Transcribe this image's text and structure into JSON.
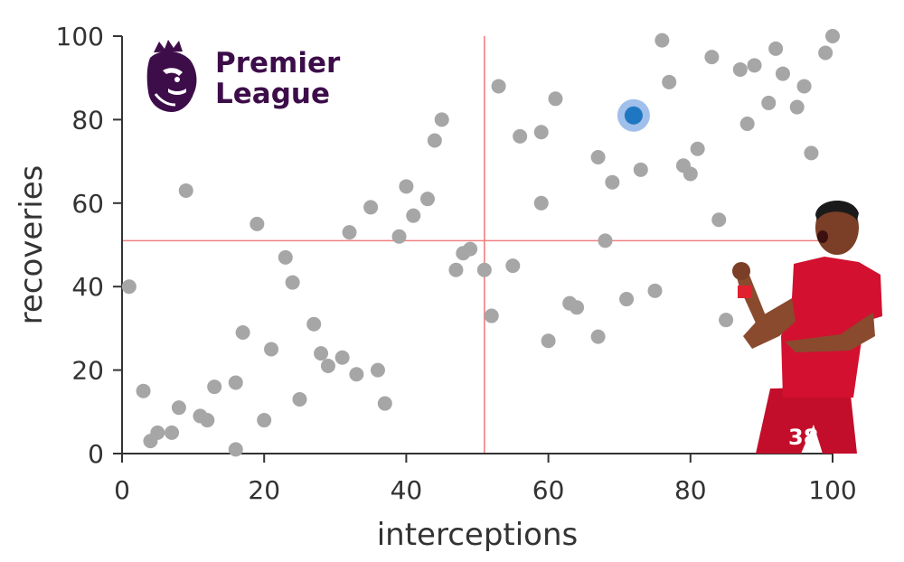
{
  "chart_data": {
    "type": "scatter",
    "xlabel": "interceptions",
    "ylabel": "recoveries",
    "xlim": [
      0,
      100
    ],
    "ylim": [
      0,
      100
    ],
    "xticks": [
      0,
      20,
      40,
      60,
      80,
      100
    ],
    "yticks": [
      0,
      20,
      40,
      60,
      80,
      100
    ],
    "grid": false,
    "reference_lines": {
      "x": 51,
      "y": 51
    },
    "highlight_point": {
      "x": 72,
      "y": 81
    },
    "points": [
      [
        1,
        40
      ],
      [
        3,
        15
      ],
      [
        4,
        3
      ],
      [
        5,
        5
      ],
      [
        7,
        5
      ],
      [
        8,
        11
      ],
      [
        9,
        63
      ],
      [
        11,
        9
      ],
      [
        12,
        8
      ],
      [
        13,
        16
      ],
      [
        16,
        1
      ],
      [
        16,
        17
      ],
      [
        17,
        29
      ],
      [
        19,
        55
      ],
      [
        20,
        8
      ],
      [
        21,
        25
      ],
      [
        23,
        47
      ],
      [
        24,
        41
      ],
      [
        25,
        13
      ],
      [
        27,
        31
      ],
      [
        28,
        24
      ],
      [
        29,
        21
      ],
      [
        31,
        23
      ],
      [
        32,
        53
      ],
      [
        33,
        19
      ],
      [
        35,
        59
      ],
      [
        36,
        20
      ],
      [
        37,
        12
      ],
      [
        39,
        52
      ],
      [
        40,
        64
      ],
      [
        41,
        57
      ],
      [
        43,
        61
      ],
      [
        44,
        75
      ],
      [
        45,
        80
      ],
      [
        47,
        44
      ],
      [
        48,
        48
      ],
      [
        49,
        49
      ],
      [
        51,
        44
      ],
      [
        52,
        33
      ],
      [
        53,
        88
      ],
      [
        55,
        45
      ],
      [
        56,
        76
      ],
      [
        59,
        77
      ],
      [
        59,
        60
      ],
      [
        60,
        27
      ],
      [
        61,
        85
      ],
      [
        63,
        36
      ],
      [
        64,
        35
      ],
      [
        67,
        71
      ],
      [
        67,
        28
      ],
      [
        68,
        51
      ],
      [
        69,
        65
      ],
      [
        71,
        37
      ],
      [
        73,
        68
      ],
      [
        75,
        39
      ],
      [
        76,
        99
      ],
      [
        77,
        89
      ],
      [
        79,
        69
      ],
      [
        80,
        67
      ],
      [
        81,
        73
      ],
      [
        83,
        95
      ],
      [
        84,
        56
      ],
      [
        85,
        32
      ],
      [
        87,
        92
      ],
      [
        88,
        79
      ],
      [
        89,
        93
      ],
      [
        91,
        84
      ],
      [
        92,
        97
      ],
      [
        93,
        91
      ],
      [
        95,
        83
      ],
      [
        96,
        88
      ],
      [
        97,
        72
      ],
      [
        99,
        96
      ],
      [
        100,
        100
      ]
    ],
    "colors": {
      "points": "#a6a6a6",
      "highlight": "#1f77c2",
      "highlight_halo": "#8fb4e6",
      "reference_lines": "#f08080",
      "axes": "#333333"
    }
  },
  "logo": {
    "line1": "Premier",
    "line2": "League",
    "color": "#3d0d4a"
  },
  "player_image": {
    "shirt_number": "38",
    "kit_color": "#d3102f"
  }
}
